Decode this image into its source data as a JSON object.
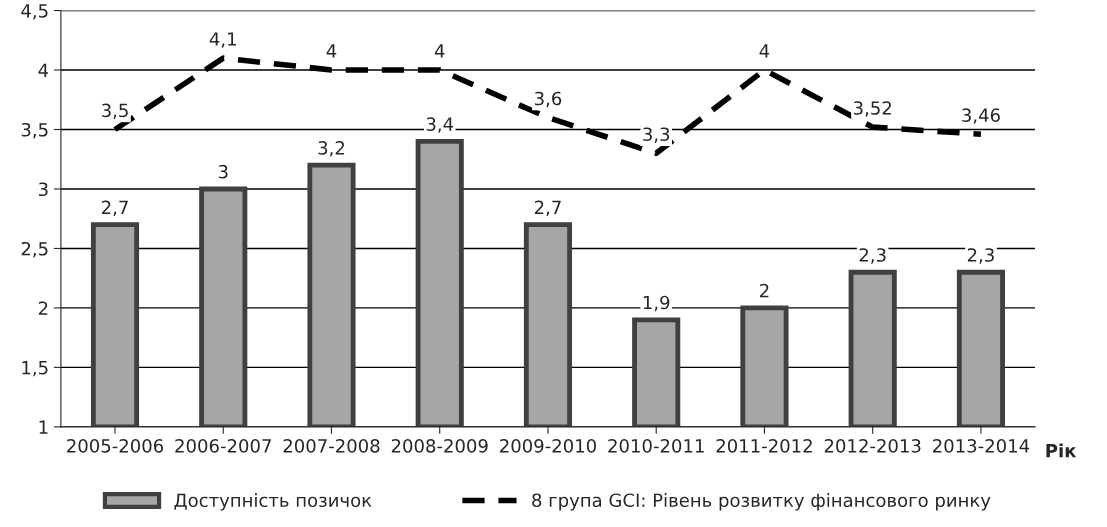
{
  "chart_data": {
    "type": "bar",
    "xlabel": "Рік",
    "categories": [
      "2005-2006",
      "2006-2007",
      "2007-2008",
      "2008-2009",
      "2009-2010",
      "2010-2011",
      "2011-2012",
      "2012-2013",
      "2013-2014"
    ],
    "series": [
      {
        "name": "Доступність позичок",
        "color": "#a6a6a6",
        "values": [
          2.7,
          3,
          3.2,
          3.4,
          2.7,
          1.9,
          2,
          2.3,
          2.3
        ],
        "value_labels": [
          "2,7",
          "3",
          "3,2",
          "3,4",
          "2,7",
          "1,9",
          "2",
          "2,3",
          "2,3"
        ]
      },
      {
        "name": "8 група GCI: Рівень розвитку фінансового ринку",
        "type": "line",
        "color": "#000000",
        "line_style": "dashed",
        "values": [
          3.5,
          4.1,
          4,
          4,
          3.6,
          3.3,
          4,
          3.52,
          3.46
        ],
        "value_labels": [
          "3,5",
          "4,1",
          "4",
          "4",
          "3,6",
          "3,3",
          "4",
          "3,52",
          "3,46"
        ]
      }
    ],
    "ylim": [
      1,
      4.5
    ],
    "yticks": [
      1,
      {
        "value": 1.5,
        "label": "1,5"
      },
      2,
      {
        "value": 2.5,
        "label": "2,5"
      },
      3,
      {
        "value": 3.5,
        "label": "3,5"
      },
      4,
      {
        "value": 4.5,
        "label": "4,5"
      }
    ],
    "grid": "y",
    "legend": "bottom"
  }
}
